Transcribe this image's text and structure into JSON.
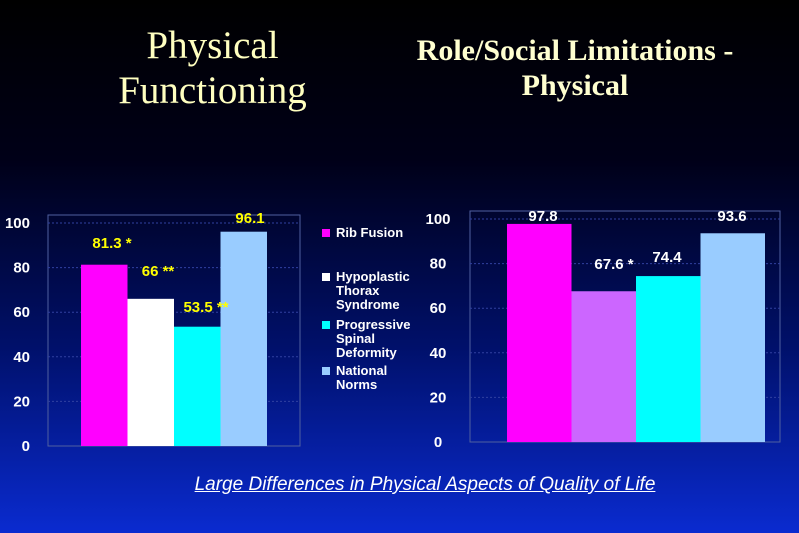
{
  "footer": "Large Differences in Physical Aspects of Quality of Life",
  "colors": {
    "rib_fusion": "#ff00ff",
    "hypoplastic": "#ffffff",
    "progressive": "#00ffff",
    "national": "#99ccff",
    "rib_fusion_right": "#ff00ff",
    "hypoplastic_right": "#cc66ff",
    "progressive_right": "#00ffff",
    "national_right": "#99ccff",
    "left_label_color": "#ffff00",
    "right_label_color": "#ffffff"
  },
  "chart_data": [
    {
      "type": "bar",
      "title": "Physical Functioning",
      "categories": [
        "Rib Fusion",
        "Hypoplastic Thorax Syndrome",
        "Progressive Spinal Deformity",
        "National Norms"
      ],
      "values": [
        81.3,
        66,
        53.5,
        96.1
      ],
      "value_labels": [
        "81.3 *",
        "66 **",
        "53.5 **",
        "96.1"
      ],
      "ylim": [
        0,
        100
      ],
      "yticks": [
        0,
        20,
        40,
        60,
        80,
        100
      ],
      "xlabel": "",
      "ylabel": "",
      "legend": [
        {
          "label_lines": [
            "Rib Fusion"
          ]
        },
        {
          "label_lines": [
            "Hypoplastic",
            "Thorax",
            "Syndrome"
          ]
        },
        {
          "label_lines": [
            "Progressive",
            "Spinal",
            "Deformity"
          ]
        },
        {
          "label_lines": [
            "National",
            "Norms"
          ]
        }
      ]
    },
    {
      "type": "bar",
      "title": "Role/Social Limitations - Physical",
      "categories": [
        "Rib Fusion",
        "Hypoplastic Thorax Syndrome",
        "Progressive Spinal Deformity",
        "National Norms"
      ],
      "values": [
        97.8,
        67.6,
        74.4,
        93.6
      ],
      "value_labels": [
        "97.8",
        "67.6 *",
        "74.4",
        "93.6"
      ],
      "ylim": [
        0,
        100
      ],
      "yticks": [
        0,
        20,
        40,
        60,
        80,
        100
      ],
      "xlabel": "",
      "ylabel": ""
    }
  ]
}
